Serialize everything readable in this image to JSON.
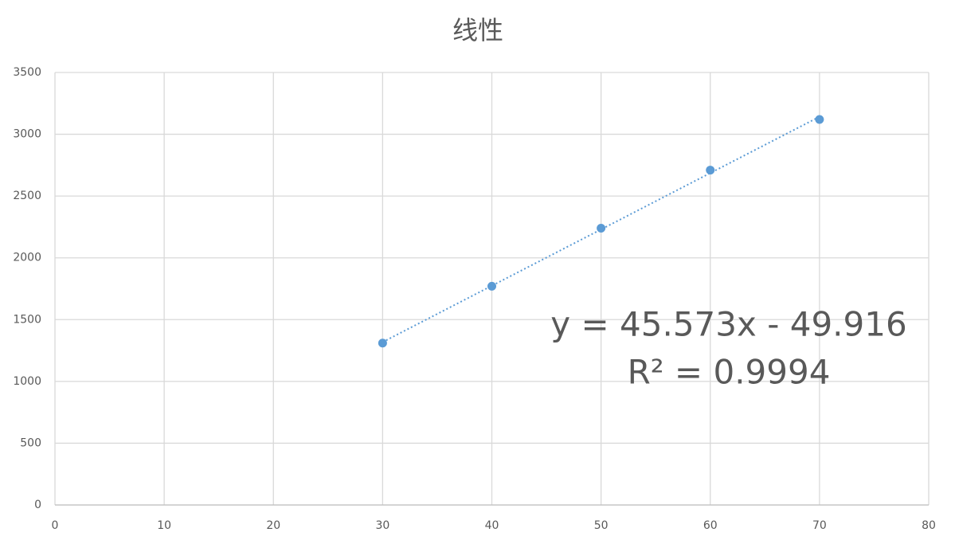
{
  "chart_data": {
    "type": "scatter",
    "title": "线性",
    "x": [
      30,
      40,
      50,
      60,
      70
    ],
    "series": [
      {
        "name": "",
        "color": "#5b9bd5",
        "values": [
          1310,
          1770,
          2240,
          2710,
          3120
        ]
      }
    ],
    "xlim": [
      0,
      80
    ],
    "xticks": [
      0,
      10,
      20,
      30,
      40,
      50,
      60,
      70,
      80
    ],
    "ylim": [
      0,
      3500
    ],
    "yticks": [
      0,
      500,
      1000,
      1500,
      2000,
      2500,
      3000,
      3500
    ],
    "grid": true,
    "annotations": [
      "y = 45.573x - 49.916",
      "R² = 0.9994"
    ]
  }
}
